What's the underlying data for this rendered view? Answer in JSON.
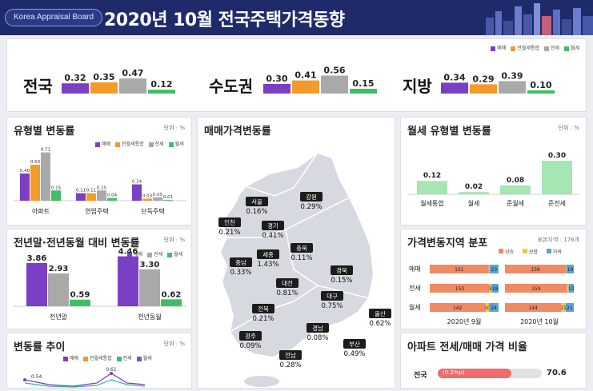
{
  "header": {
    "org": "Korea Appraisal Board",
    "title": "2020년 10월  전국주택가격동향"
  },
  "colors": {
    "sale": "#7b3fc4",
    "composite": "#f39a2b",
    "jeonse": "#a9a9a9",
    "monthly": "#3fbf64"
  },
  "legend4": [
    "매매",
    "전월세통합",
    "전세",
    "월세"
  ],
  "legend3": [
    "매매",
    "전세",
    "월세"
  ],
  "chart_data": [
    {
      "type": "bar",
      "name": "전국",
      "series": [
        {
          "name": "매매",
          "values": [
            0.32
          ]
        },
        {
          "name": "전월세통합",
          "values": [
            0.35
          ]
        },
        {
          "name": "전세",
          "values": [
            0.47
          ]
        },
        {
          "name": "월세",
          "values": [
            0.12
          ]
        }
      ]
    },
    {
      "type": "bar",
      "name": "수도권",
      "series": [
        {
          "name": "매매",
          "values": [
            0.3
          ]
        },
        {
          "name": "전월세통합",
          "values": [
            0.41
          ]
        },
        {
          "name": "전세",
          "values": [
            0.56
          ]
        },
        {
          "name": "월세",
          "values": [
            0.15
          ]
        }
      ]
    },
    {
      "type": "bar",
      "name": "지방",
      "series": [
        {
          "name": "매매",
          "values": [
            0.34
          ]
        },
        {
          "name": "전월세통합",
          "values": [
            0.29
          ]
        },
        {
          "name": "전세",
          "values": [
            0.39
          ]
        },
        {
          "name": "월세",
          "values": [
            0.1
          ]
        }
      ]
    },
    {
      "type": "bar",
      "title": "유형별 변동률",
      "unit": "단위 : %",
      "categories": [
        "아파트",
        "연립주택",
        "단독주택"
      ],
      "series": [
        {
          "name": "매매",
          "values": [
            0.4,
            0.11,
            0.24
          ]
        },
        {
          "name": "전월세통합",
          "values": [
            0.53,
            0.11,
            0.03
          ]
        },
        {
          "name": "전세",
          "values": [
            0.71,
            0.15,
            0.05
          ]
        },
        {
          "name": "월세",
          "values": [
            0.15,
            0.04,
            0.01
          ]
        }
      ],
      "labels": [
        [
          "0.40",
          "0.53",
          "0.71",
          "0.15"
        ],
        [
          "0.11",
          "0.11",
          "0.15",
          "0.04"
        ],
        [
          "0.24",
          "0.03",
          "0.05",
          "0.01"
        ]
      ]
    },
    {
      "type": "bar",
      "title": "전년말·전년동월 대비 변동률",
      "unit": "단위 : %",
      "categories": [
        "전년말",
        "전년동월"
      ],
      "series": [
        {
          "name": "매매",
          "values": [
            3.86,
            4.46
          ]
        },
        {
          "name": "전세",
          "values": [
            2.93,
            3.3
          ]
        },
        {
          "name": "월세",
          "values": [
            0.59,
            0.62
          ]
        }
      ]
    },
    {
      "type": "bar",
      "title": "월세 유형별 변동률",
      "unit": "단위 : %",
      "categories": [
        "월세통합",
        "월세",
        "준월세",
        "준전세"
      ],
      "values": [
        0.12,
        0.02,
        0.08,
        0.3
      ]
    },
    {
      "type": "bar",
      "title": "가격변동지역 분포",
      "unit": "표본지역 : 176개",
      "legend": [
        "상승",
        "보합",
        "하락"
      ],
      "rows": [
        "매매",
        "전세",
        "월세"
      ],
      "periods": [
        "2020년 9월",
        "2020년 10월"
      ],
      "values": [
        [
          [
            151,
            2,
            23
          ],
          [
            156,
            1,
            19
          ]
        ],
        [
          [
            153,
            5,
            18
          ],
          [
            159,
            4,
            13
          ]
        ],
        [
          [
            142,
            10,
            24
          ],
          [
            144,
            11,
            21
          ]
        ]
      ]
    },
    {
      "type": "line",
      "title": "변동률 추이",
      "unit": "단위 : %",
      "visible_labels": [
        "0.54",
        "0.61"
      ]
    },
    {
      "type": "bar",
      "title": "아파트 전세/매매 가격 비율",
      "categories": [
        "전국"
      ],
      "values": [
        70.6
      ],
      "bar_label": "(0.2%p)"
    }
  ],
  "top": {
    "regions": [
      {
        "name": "전국",
        "labels": [
          "0.32",
          "0.35",
          "0.47",
          "0.12"
        ]
      },
      {
        "name": "수도권",
        "labels": [
          "0.30",
          "0.41",
          "0.56",
          "0.15"
        ]
      },
      {
        "name": "지방",
        "labels": [
          "0.34",
          "0.29",
          "0.39",
          "0.10"
        ]
      }
    ]
  },
  "panels": {
    "type_title": "유형별 변동률",
    "type_unit": "단위 : %",
    "yoy_title": "전년말·전년동월 대비 변동률",
    "yoy_unit": "단위 : %",
    "trend_title": "변동률 추이",
    "trend_unit": "단위 : %",
    "map_title": "매매가격변동률",
    "rent_title": "월세 유형별 변동률",
    "rent_unit": "단위 : %",
    "dist_title": "가격변동지역 분포",
    "dist_unit": "표본지역 : 176개",
    "ratio_title": "아파트 전세/매매 가격 비율",
    "ratio_row": "전국",
    "ratio_value": "70.6",
    "ratio_bar_label": "(0.2%p)"
  },
  "map_regions": [
    {
      "name": "서울",
      "value": "0.16%"
    },
    {
      "name": "강원",
      "value": "0.29%"
    },
    {
      "name": "인천",
      "value": "0.21%"
    },
    {
      "name": "경기",
      "value": "0.41%"
    },
    {
      "name": "충북",
      "value": "0.11%"
    },
    {
      "name": "세종",
      "value": "1.43%"
    },
    {
      "name": "충남",
      "value": "0.33%"
    },
    {
      "name": "경북",
      "value": "0.15%"
    },
    {
      "name": "대전",
      "value": "0.81%"
    },
    {
      "name": "대구",
      "value": "0.75%"
    },
    {
      "name": "전북",
      "value": "0.21%"
    },
    {
      "name": "울산",
      "value": "0.62%"
    },
    {
      "name": "경남",
      "value": "0.08%"
    },
    {
      "name": "광주",
      "value": "0.09%"
    },
    {
      "name": "부산",
      "value": "0.49%"
    },
    {
      "name": "전남",
      "value": "0.28%"
    }
  ]
}
